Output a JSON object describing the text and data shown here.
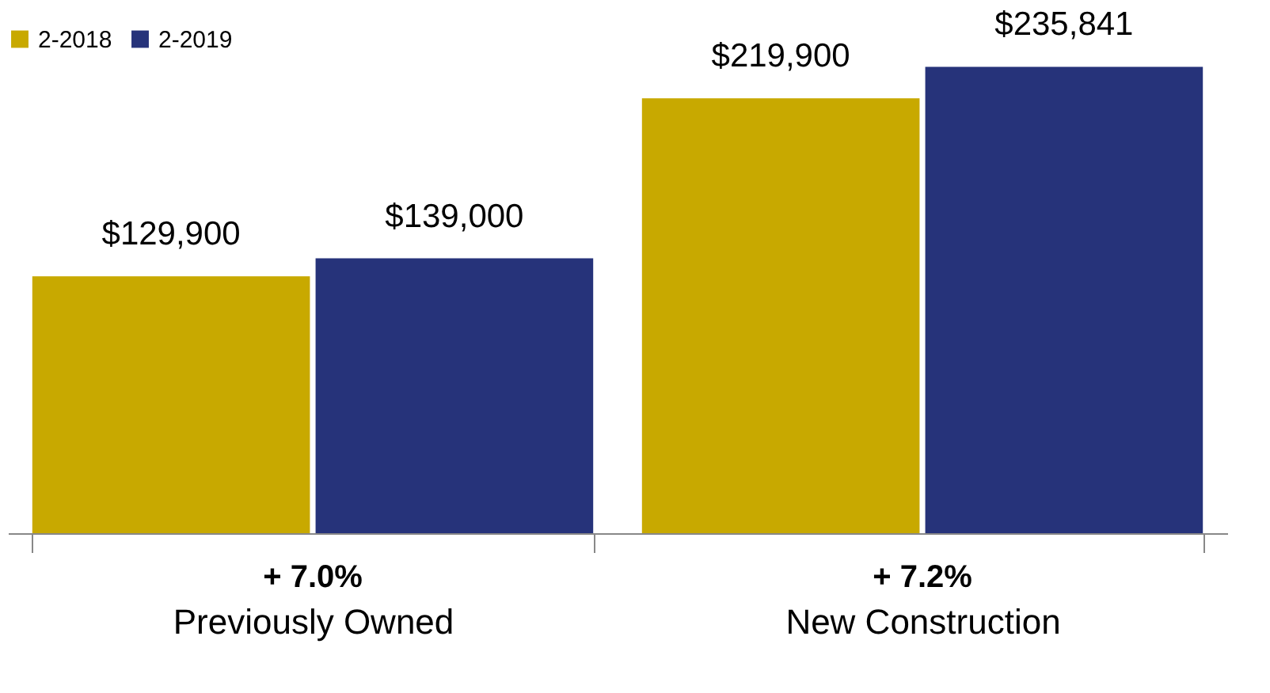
{
  "chart_data": {
    "type": "bar",
    "categories": [
      "Previously Owned",
      "New Construction"
    ],
    "series": [
      {
        "name": "2-2018",
        "color": "#c8a900",
        "values": [
          129900,
          219900
        ],
        "value_labels": [
          "$129,900",
          "$219,900"
        ]
      },
      {
        "name": "2-2019",
        "color": "#26337a",
        "values": [
          139000,
          235841
        ],
        "value_labels": [
          "$139,000",
          "$235,841"
        ]
      }
    ],
    "annotations": [
      "+ 7.0%",
      "+ 7.2%"
    ],
    "legend": "top left",
    "grid": false
  }
}
